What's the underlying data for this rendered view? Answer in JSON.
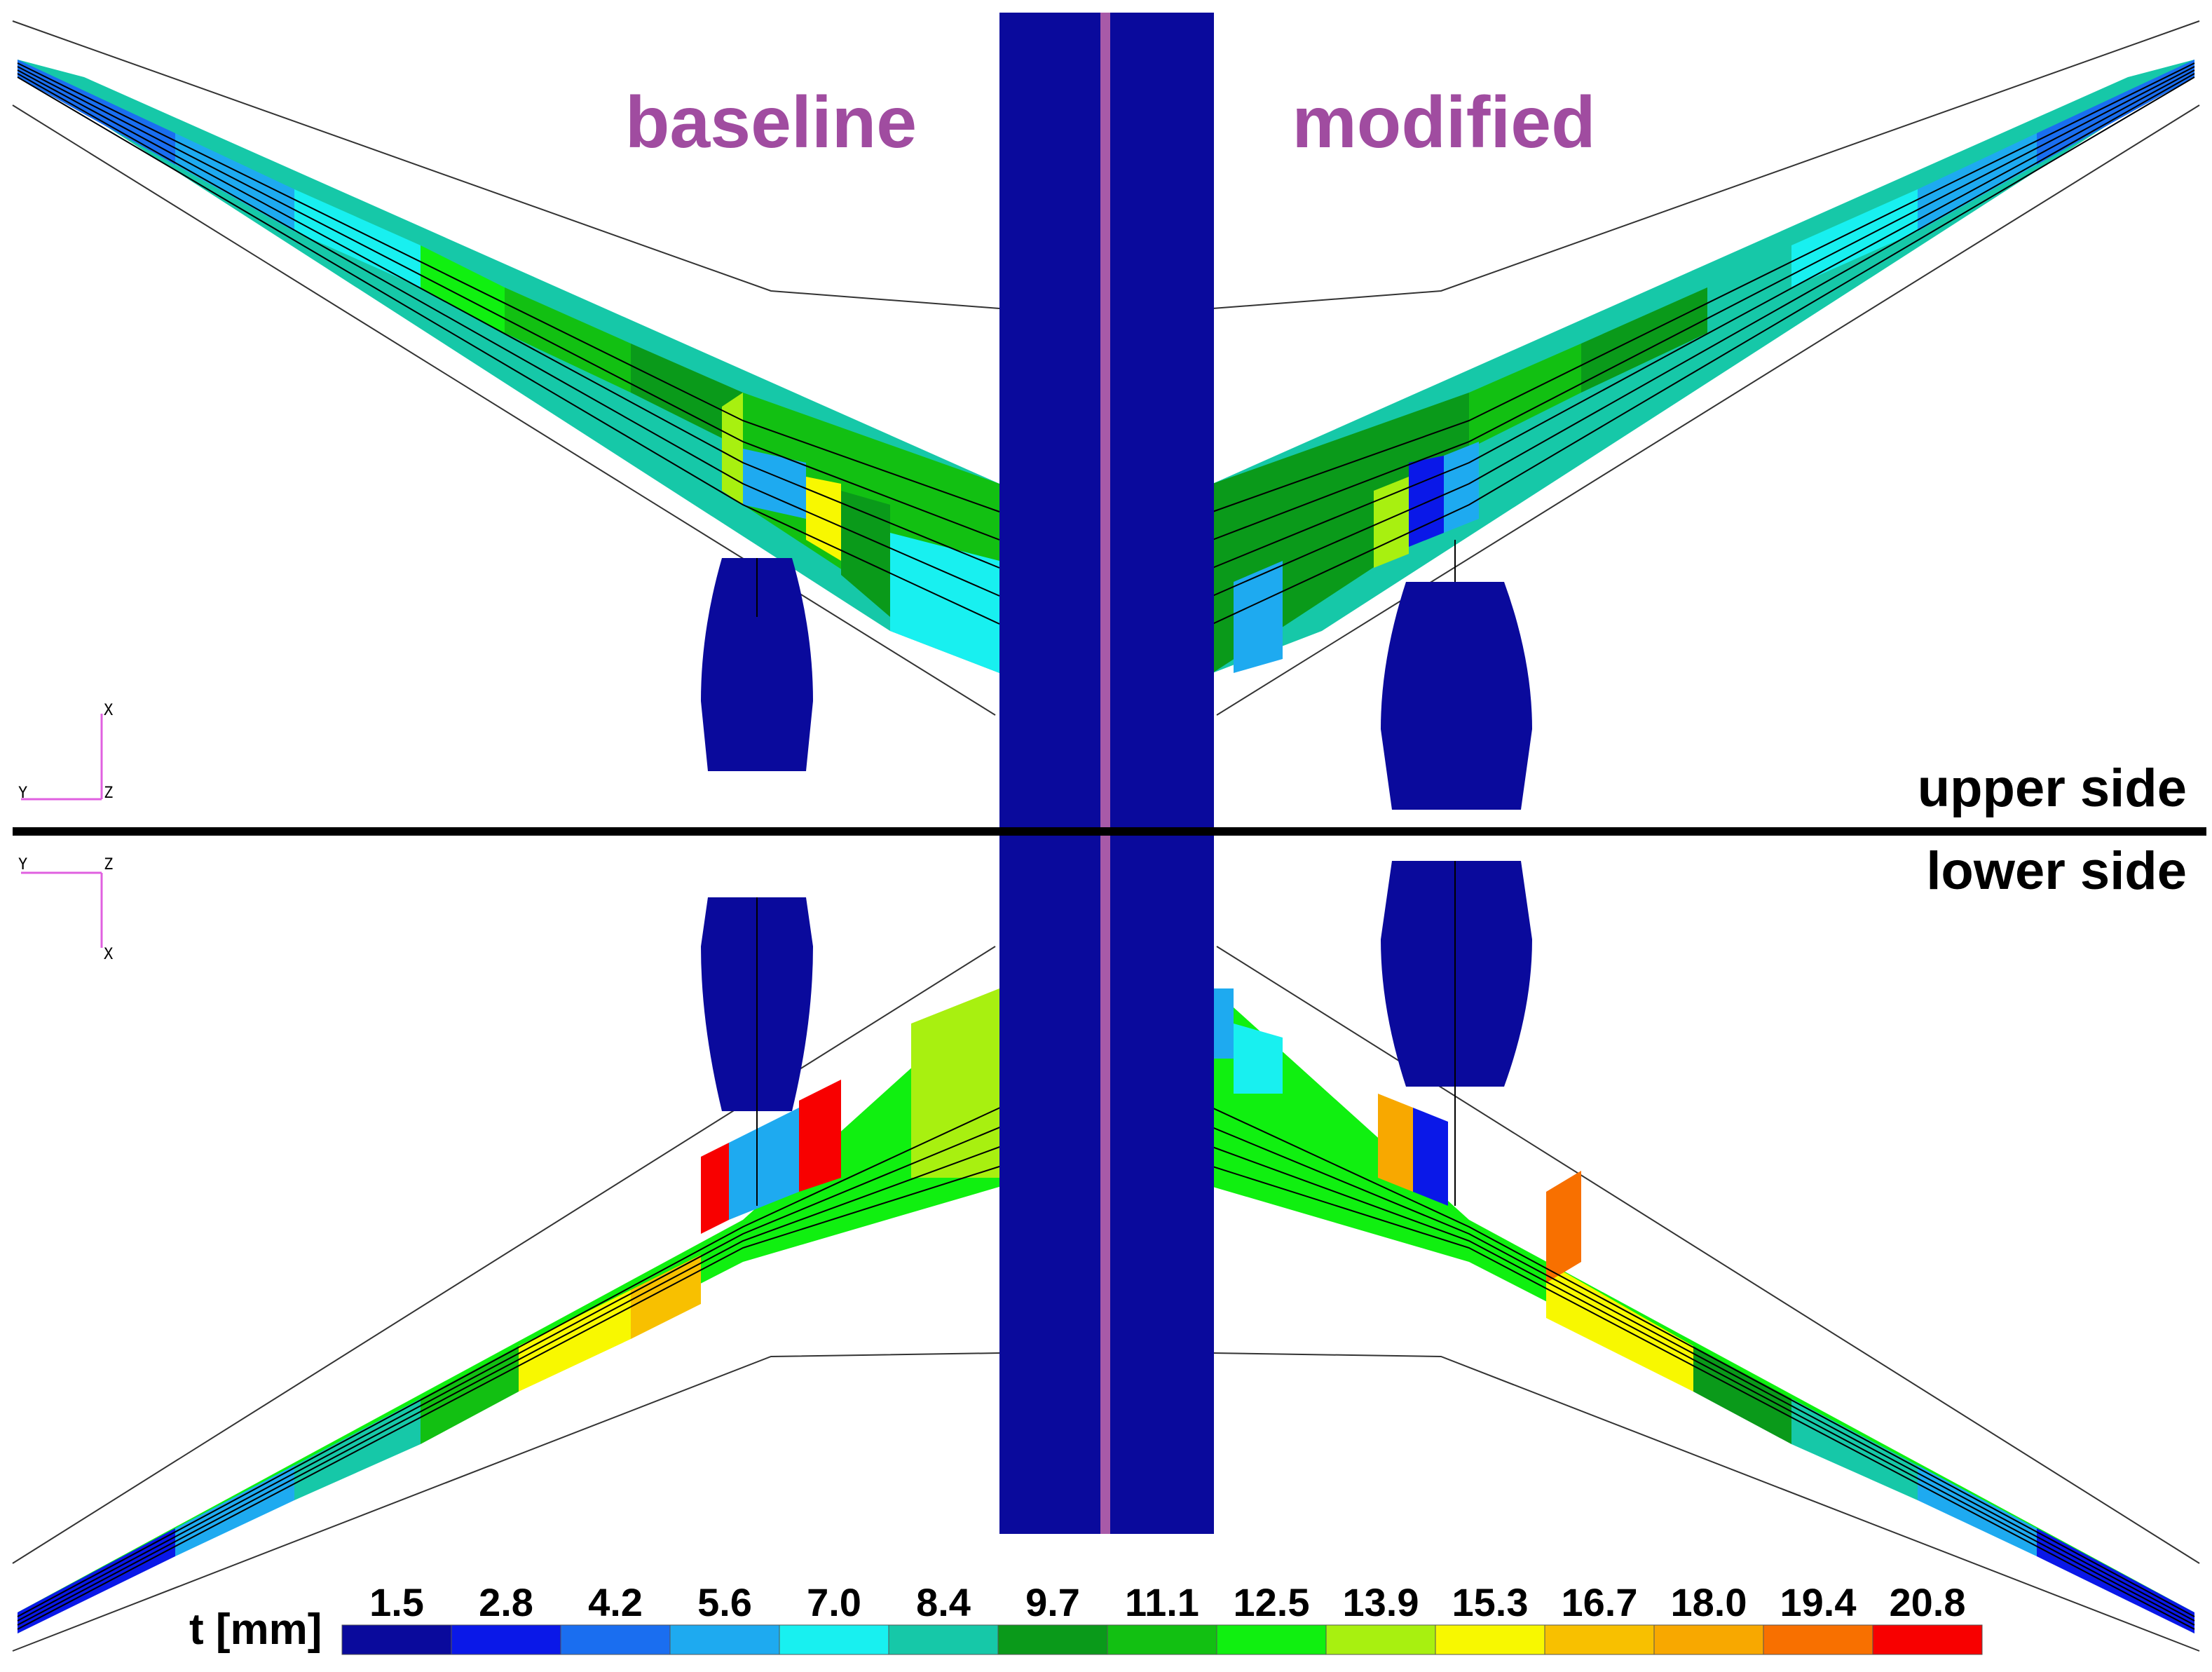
{
  "labels": {
    "baseline": "baseline",
    "modified": "modified",
    "upper_side": "upper side",
    "lower_side": "lower side"
  },
  "axes_triad": {
    "upper": {
      "horizontal": "Y",
      "vertical": "X",
      "corner": "Z"
    },
    "lower": {
      "horizontal": "Y",
      "vertical": "X",
      "corner": "Z"
    }
  },
  "colors": {
    "body": "#0a0a9c",
    "centerline": "#a85aa8",
    "label": "#a04ca0",
    "triad": "#e060e0"
  },
  "legend": {
    "title": "t [mm]",
    "ticks": [
      "1.5",
      "2.8",
      "4.2",
      "5.6",
      "7.0",
      "8.4",
      "9.7",
      "11.1",
      "12.5",
      "13.9",
      "15.3",
      "16.7",
      "18.0",
      "19.4",
      "20.8"
    ],
    "colors": [
      "#0a0a9c",
      "#0a18e8",
      "#1a6ef0",
      "#1eaaf0",
      "#18f0f0",
      "#16c8a8",
      "#0a9a1a",
      "#12c012",
      "#10f010",
      "#a8f010",
      "#f8f800",
      "#f8c000",
      "#f8a800",
      "#f87000",
      "#f80000"
    ]
  }
}
